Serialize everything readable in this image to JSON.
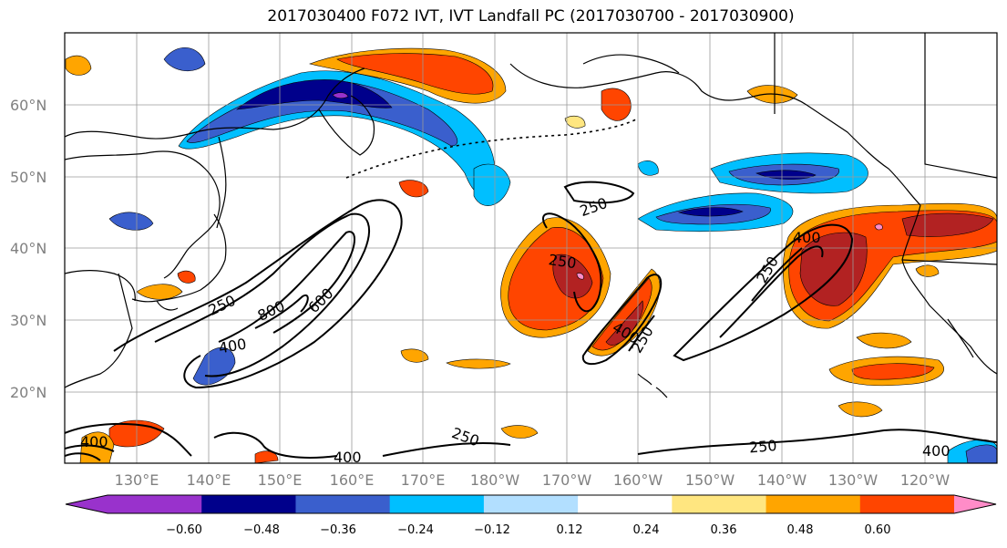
{
  "title": "2017030400 F072 IVT, IVT Landfall PC (2017030700 - 2017030900)",
  "lat_labels": [
    "60°N",
    "50°N",
    "40°N",
    "30°N",
    "20°N"
  ],
  "lon_labels": [
    "130°E",
    "140°E",
    "150°E",
    "160°E",
    "170°E",
    "180°W",
    "170°W",
    "160°W",
    "150°W",
    "140°W",
    "130°W",
    "120°W"
  ],
  "colorbar": {
    "ticks": [
      "−0.60",
      "−0.48",
      "−0.36",
      "−0.24",
      "−0.12",
      "0.12",
      "0.24",
      "0.36",
      "0.48",
      "0.60"
    ],
    "colors": [
      "#9932cc",
      "#00008b",
      "#3a5fcd",
      "#00bfff",
      "#b2dfff",
      "#ffffff",
      "#ffe680",
      "#ffa500",
      "#ff4500",
      "#b22222",
      "#ff8cc8"
    ]
  },
  "contour_labels": [
    "250",
    "800",
    "600",
    "400",
    "250",
    "250",
    "400",
    "250",
    "250",
    "400",
    "400",
    "250",
    "400",
    "400",
    "250"
  ]
}
